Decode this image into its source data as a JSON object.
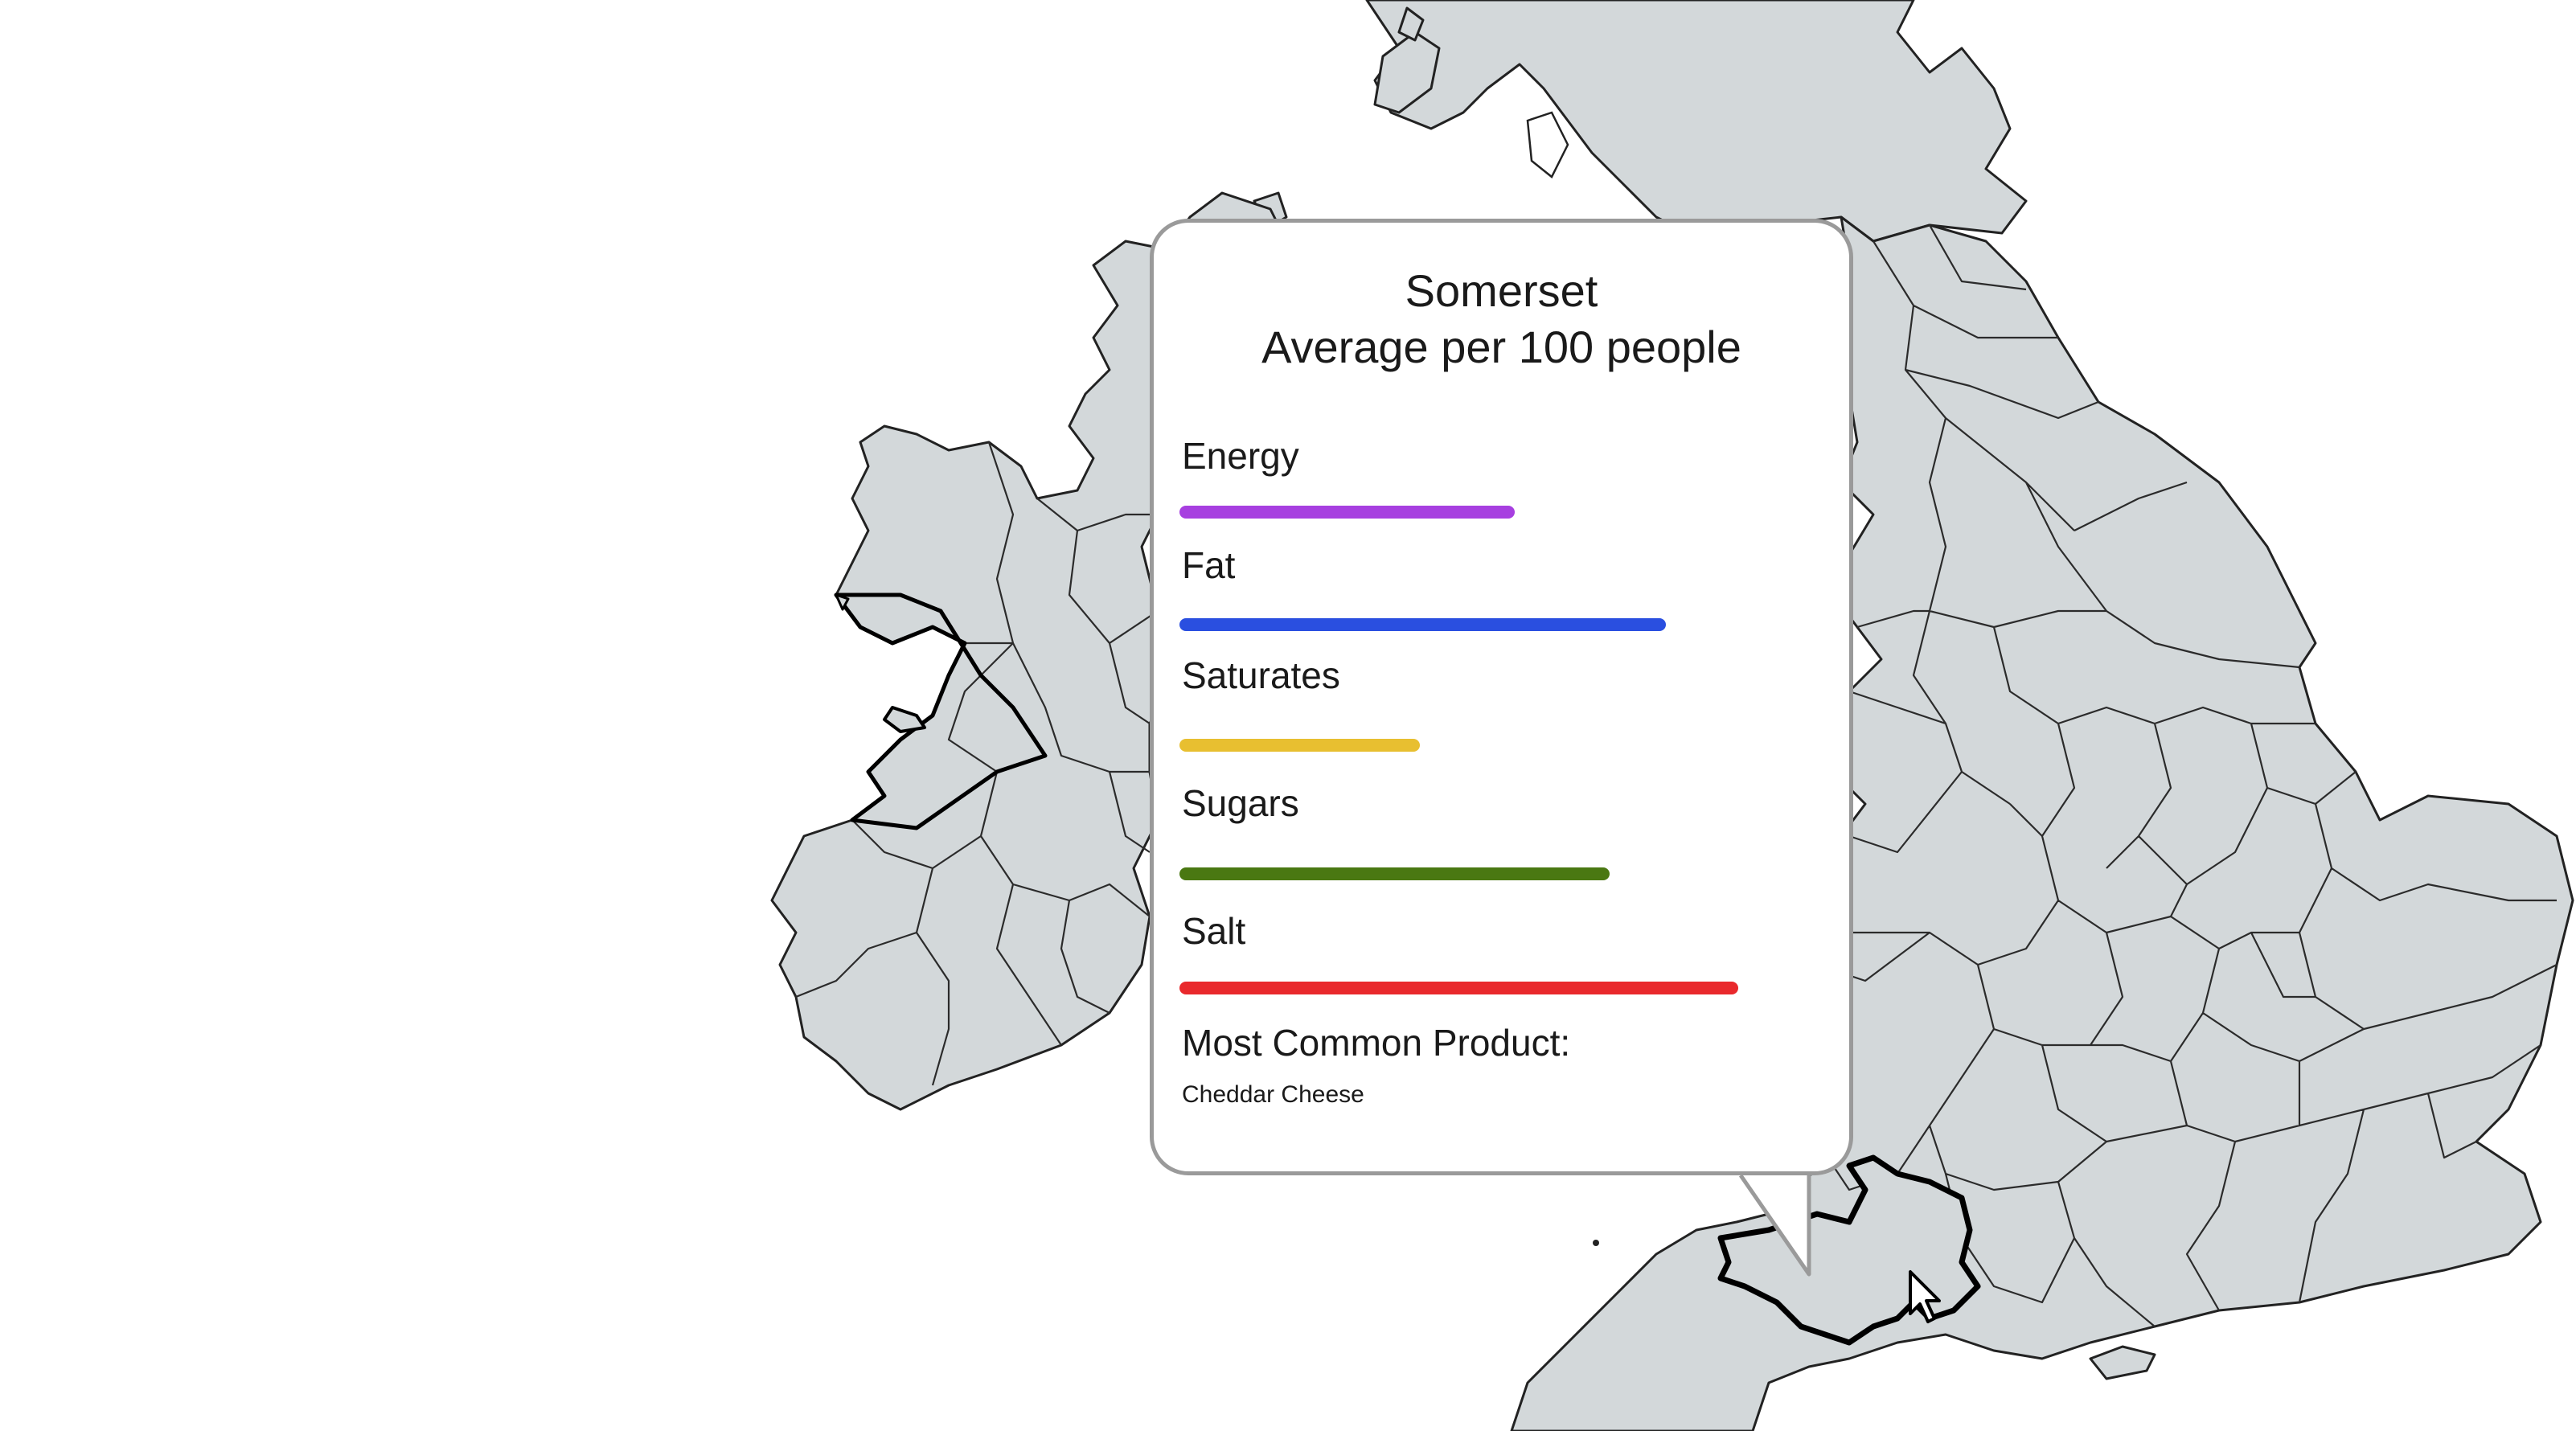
{
  "tooltip": {
    "region": "Somerset",
    "subtitle": "Average per 100 people",
    "metrics": [
      {
        "label": "Energy",
        "value": 0.6,
        "color": "#a73fe0"
      },
      {
        "label": "Fat",
        "value": 0.87,
        "color": "#2a4fe0"
      },
      {
        "label": "Saturates",
        "value": 0.43,
        "color": "#e8bf30"
      },
      {
        "label": "Sugars",
        "value": 0.77,
        "color": "#4a7812"
      },
      {
        "label": "Salt",
        "value": 1.0,
        "color": "#e9292c"
      }
    ],
    "product_label": "Most Common Product:",
    "product_value": "Cheddar Cheese"
  },
  "map": {
    "land_color": "#d3d8da",
    "highlighted_region": "Somerset"
  }
}
